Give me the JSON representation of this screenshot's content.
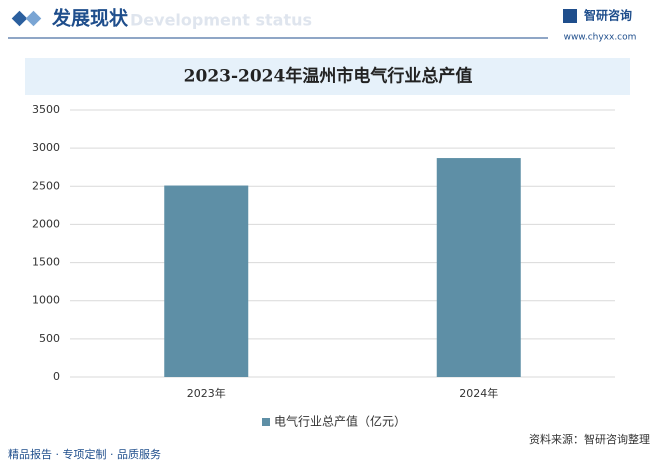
{
  "header": {
    "title": "发展现状",
    "subtitle": "Development status",
    "brand": "智研咨询",
    "site": "www.chyxx.com"
  },
  "chart_data": {
    "type": "bar",
    "title": "2023-2024年温州市电气行业总产值",
    "categories": [
      "2023年",
      "2024年"
    ],
    "series": [
      {
        "name": "电气行业总产值（亿元）",
        "color": "#5e8fa6",
        "values": [
          2510,
          2870
        ]
      }
    ],
    "ylim": [
      0,
      3500
    ],
    "yticks": [
      0,
      500,
      1000,
      1500,
      2000,
      2500,
      3000,
      3500
    ],
    "grid": true,
    "legend": "bottom"
  },
  "footer": {
    "left": "精品报告 · 专项定制 · 品质服务",
    "source": "资料来源：智研咨询整理"
  }
}
